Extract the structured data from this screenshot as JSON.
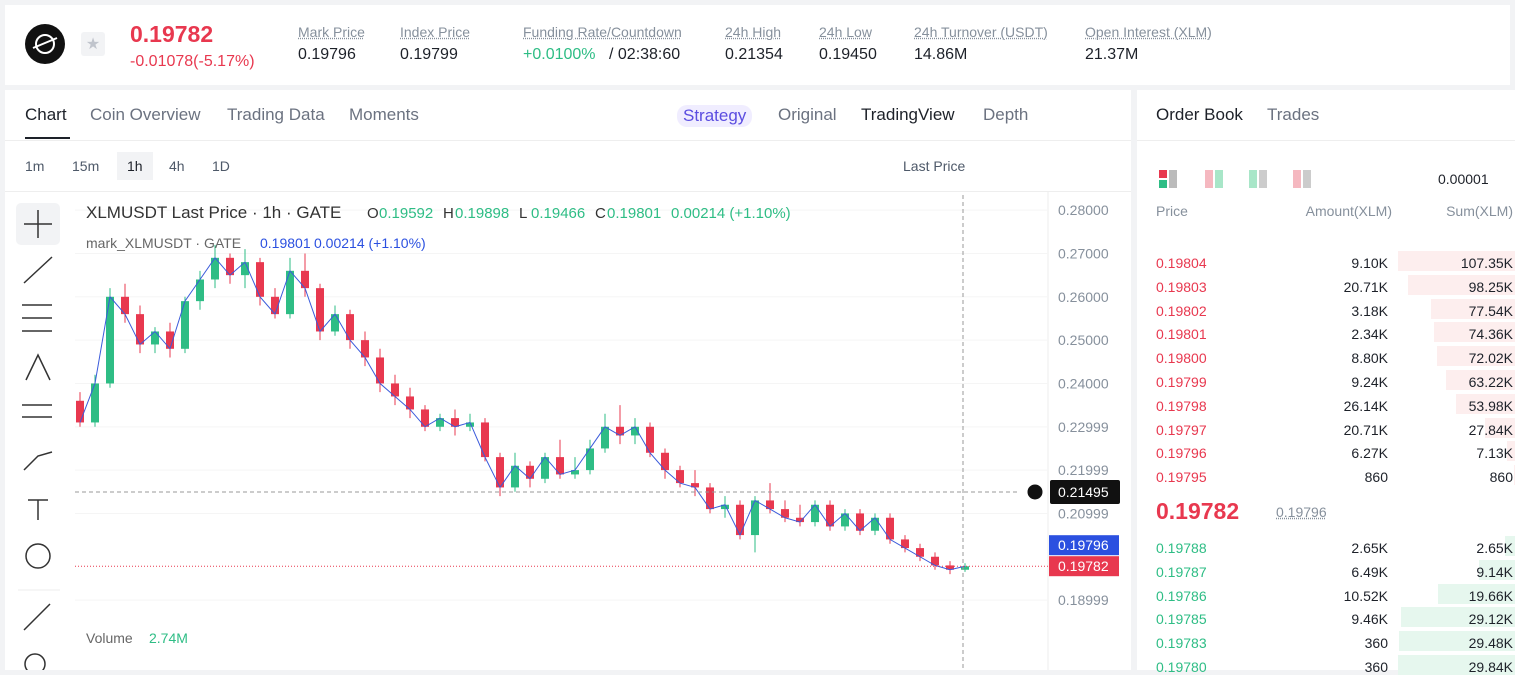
{
  "header": {
    "price": "0.19782",
    "change": "-0.01078(-5.17%)",
    "stats": [
      {
        "label": "Mark Price",
        "value": "0.19796"
      },
      {
        "label": "Index Price",
        "value": "0.19799"
      },
      {
        "label": "Funding Rate/Countdown",
        "value": "+0.0100%",
        "extra": "/ 02:38:60"
      },
      {
        "label": "24h High",
        "value": "0.21354"
      },
      {
        "label": "24h Low",
        "value": "0.19450"
      },
      {
        "label": "24h Turnover (USDT)",
        "value": "14.86M"
      },
      {
        "label": "Open Interest (XLM)",
        "value": "21.37M"
      }
    ]
  },
  "chart_tabs": [
    "Chart",
    "Coin Overview",
    "Trading Data",
    "Moments"
  ],
  "view_tabs": [
    "Strategy",
    "Original",
    "TradingView",
    "Depth"
  ],
  "timeframes": [
    "1m",
    "15m",
    "1h",
    "4h",
    "1D"
  ],
  "price_type": "Last Price",
  "chart": {
    "symbol": "XLMUSDT Last Price · 1h · GATE",
    "ohlc": [
      {
        "k": "O",
        "v": "0.19592"
      },
      {
        "k": "H",
        "v": "0.19898"
      },
      {
        "k": "L",
        "v": "0.19466"
      },
      {
        "k": "C",
        "v": "0.19801"
      }
    ],
    "change": "0.00214 (+1.10%)",
    "mark_label": "mark_XLMUSDT · GATE",
    "mark_value": "0.19801",
    "mark_change": "0.00214 (+1.10%)",
    "ylim": [
      0.1854,
      0.2835
    ],
    "yticks": [
      {
        "value": 0.28,
        "label": "0.28000"
      },
      {
        "value": 0.27,
        "label": "0.27000"
      },
      {
        "value": 0.26,
        "label": "0.26000"
      },
      {
        "value": 0.25,
        "label": "0.25000"
      },
      {
        "value": 0.24,
        "label": "0.24000"
      },
      0.22999,
      0.21999,
      0.20999,
      0.18999
    ],
    "crosshair_price": {
      "value": 0.21495,
      "label": "0.21495"
    },
    "mark_tag": {
      "value": 0.19796,
      "label": "0.19796"
    },
    "last_tag": {
      "value": 0.19782,
      "label": "0.19782"
    },
    "volume_label": "Volume",
    "volume_value": "2.74M",
    "open": [
      0.236,
      0.231,
      0.24,
      0.26,
      0.256,
      0.249,
      0.252,
      0.248,
      0.259,
      0.264,
      0.269,
      0.265,
      0.268,
      0.26,
      0.256,
      0.266,
      0.262,
      0.252,
      0.256,
      0.25,
      0.246,
      0.24,
      0.237,
      0.234,
      0.23,
      0.232,
      0.23,
      0.231,
      0.223,
      0.216,
      0.221,
      0.218,
      0.223,
      0.219,
      0.22,
      0.225,
      0.23,
      0.228,
      0.23,
      0.224,
      0.22,
      0.217,
      0.216,
      0.211,
      0.212,
      0.205,
      0.213,
      0.211,
      0.209,
      0.208,
      0.212,
      0.207,
      0.21,
      0.206,
      0.209,
      0.204,
      0.202,
      0.2,
      0.198,
      0.197
    ],
    "high": [
      0.238,
      0.242,
      0.262,
      0.263,
      0.258,
      0.253,
      0.254,
      0.26,
      0.266,
      0.272,
      0.27,
      0.271,
      0.269,
      0.262,
      0.269,
      0.27,
      0.263,
      0.258,
      0.257,
      0.252,
      0.248,
      0.242,
      0.239,
      0.235,
      0.233,
      0.234,
      0.233,
      0.232,
      0.224,
      0.224,
      0.222,
      0.224,
      0.227,
      0.223,
      0.227,
      0.233,
      0.235,
      0.232,
      0.231,
      0.225,
      0.221,
      0.22,
      0.217,
      0.214,
      0.213,
      0.214,
      0.217,
      0.213,
      0.212,
      0.213,
      0.213,
      0.211,
      0.211,
      0.21,
      0.21,
      0.205,
      0.203,
      0.201,
      0.199,
      0.1985
    ],
    "low": [
      0.23,
      0.23,
      0.239,
      0.254,
      0.247,
      0.247,
      0.246,
      0.247,
      0.257,
      0.262,
      0.263,
      0.262,
      0.258,
      0.255,
      0.255,
      0.26,
      0.25,
      0.251,
      0.248,
      0.244,
      0.238,
      0.235,
      0.232,
      0.229,
      0.229,
      0.228,
      0.229,
      0.222,
      0.214,
      0.215,
      0.216,
      0.217,
      0.218,
      0.218,
      0.219,
      0.224,
      0.226,
      0.226,
      0.223,
      0.218,
      0.216,
      0.214,
      0.21,
      0.209,
      0.204,
      0.201,
      0.21,
      0.208,
      0.207,
      0.207,
      0.206,
      0.206,
      0.205,
      0.205,
      0.203,
      0.201,
      0.199,
      0.197,
      0.196,
      0.1965
    ],
    "close": [
      0.231,
      0.24,
      0.26,
      0.256,
      0.249,
      0.252,
      0.248,
      0.259,
      0.264,
      0.269,
      0.265,
      0.268,
      0.26,
      0.256,
      0.266,
      0.262,
      0.252,
      0.256,
      0.25,
      0.246,
      0.24,
      0.237,
      0.234,
      0.23,
      0.232,
      0.23,
      0.231,
      0.223,
      0.216,
      0.221,
      0.218,
      0.223,
      0.219,
      0.22,
      0.225,
      0.23,
      0.228,
      0.23,
      0.224,
      0.22,
      0.217,
      0.216,
      0.211,
      0.212,
      0.205,
      0.213,
      0.211,
      0.209,
      0.208,
      0.212,
      0.207,
      0.21,
      0.206,
      0.209,
      0.204,
      0.202,
      0.2,
      0.198,
      0.197,
      0.1978
    ]
  },
  "order_book": {
    "tabs": [
      "Order Book",
      "Trades"
    ],
    "precision": "0.00001",
    "headers": [
      "Price",
      "Amount(XLM)",
      "Sum(XLM)"
    ],
    "asks": [
      {
        "price": "0.19804",
        "amount": "9.10K",
        "sum": {
          "value": 107350,
          "label": "107.35K"
        }
      },
      {
        "price": "0.19803",
        "amount": "20.71K",
        "sum": {
          "value": 98250,
          "label": "98.25K"
        }
      },
      {
        "price": "0.19802",
        "amount": "3.18K",
        "sum": {
          "value": 77540,
          "label": "77.54K"
        }
      },
      {
        "price": "0.19801",
        "amount": "2.34K",
        "sum": {
          "value": 74360,
          "label": "74.36K"
        }
      },
      {
        "price": "0.19800",
        "amount": "8.80K",
        "sum": {
          "value": 72020,
          "label": "72.02K"
        }
      },
      {
        "price": "0.19799",
        "amount": "9.24K",
        "sum": {
          "value": 63220,
          "label": "63.22K"
        }
      },
      {
        "price": "0.19798",
        "amount": "26.14K",
        "sum": {
          "value": 53980,
          "label": "53.98K"
        }
      },
      {
        "price": "0.19797",
        "amount": "20.71K",
        "sum": {
          "value": 27840,
          "label": "27.84K"
        }
      },
      {
        "price": "0.19796",
        "amount": "6.27K",
        "sum": {
          "value": 7130,
          "label": "7.13K"
        }
      },
      {
        "price": "0.19795",
        "amount": "860",
        "sum": 860
      }
    ],
    "last_price": "0.19782",
    "mark_price": "0.19796",
    "bids": [
      {
        "price": "0.19788",
        "amount": "2.65K",
        "sum": {
          "value": 2650,
          "label": "2.65K"
        }
      },
      {
        "price": "0.19787",
        "amount": "6.49K",
        "sum": {
          "value": 9140,
          "label": "9.14K"
        }
      },
      {
        "price": "0.19786",
        "amount": "10.52K",
        "sum": {
          "value": 19660,
          "label": "19.66K"
        }
      },
      {
        "price": "0.19785",
        "amount": "9.46K",
        "sum": {
          "value": 29120,
          "label": "29.12K"
        }
      },
      {
        "price": "0.19783",
        "amount": "360",
        "sum": {
          "value": 29480,
          "label": "29.48K"
        }
      },
      {
        "price": "0.19780",
        "amount": "360",
        "sum": {
          "value": 29840,
          "label": "29.84K"
        }
      }
    ]
  }
}
